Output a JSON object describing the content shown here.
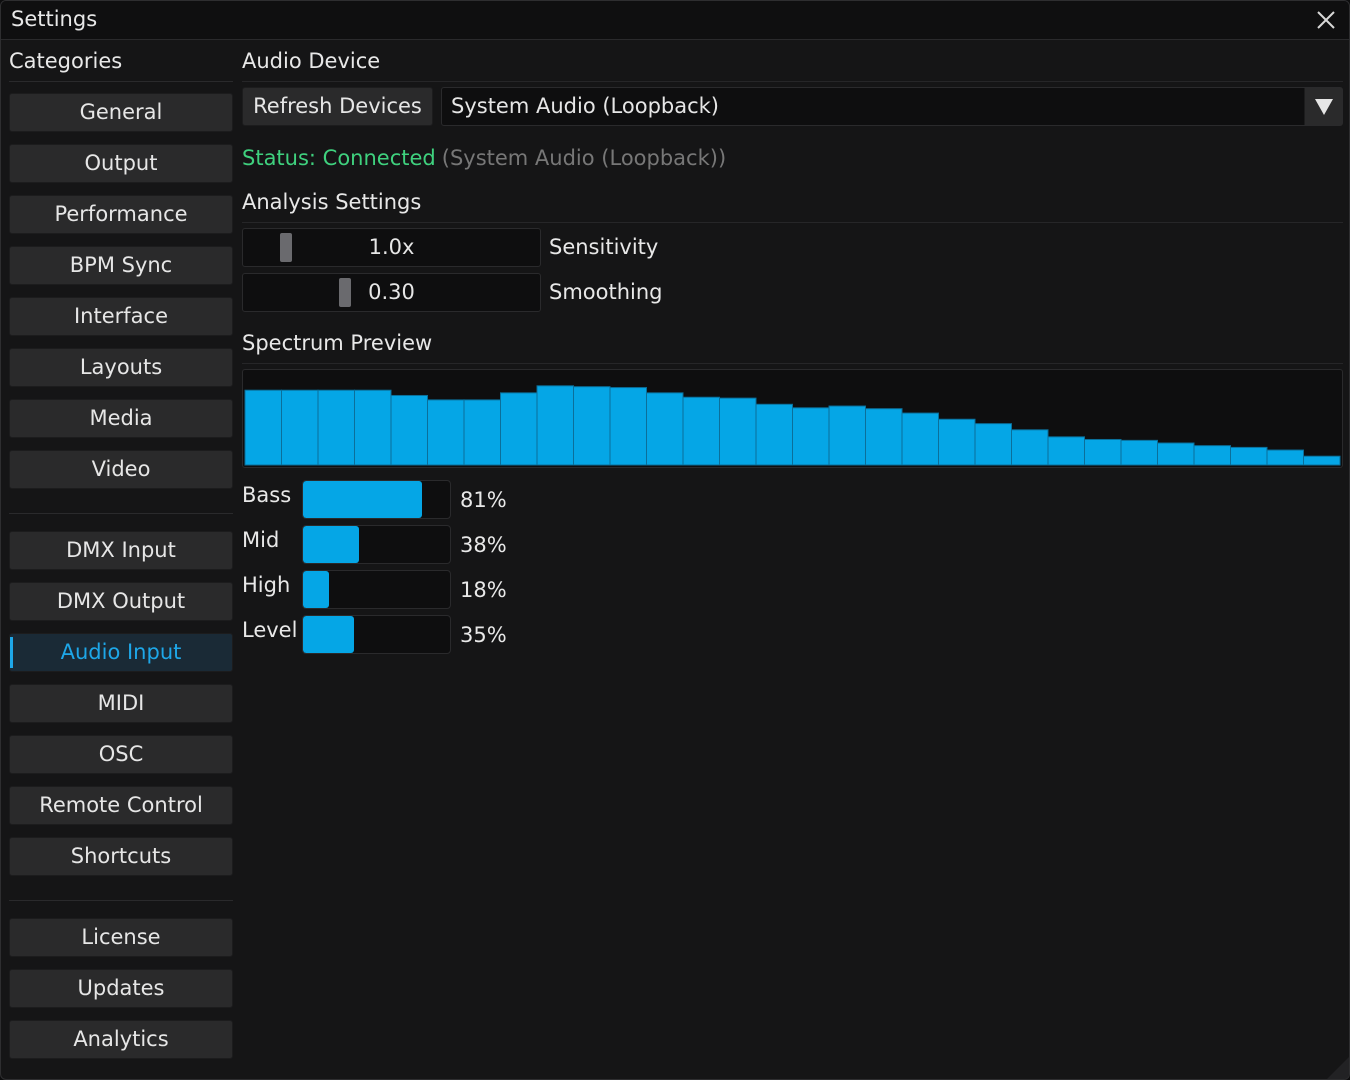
{
  "window": {
    "title": "Settings"
  },
  "sidebar": {
    "title": "Categories",
    "groups": [
      [
        "General",
        "Output",
        "Performance",
        "BPM Sync",
        "Interface",
        "Layouts",
        "Media",
        "Video"
      ],
      [
        "DMX Input",
        "DMX Output",
        "Audio Input",
        "MIDI",
        "OSC",
        "Remote Control",
        "Shortcuts"
      ],
      [
        "License",
        "Updates",
        "Analytics"
      ]
    ],
    "active": "Audio Input"
  },
  "audio_device": {
    "section_title": "Audio Device",
    "refresh_label": "Refresh Devices",
    "selected_device": "System Audio (Loopback)",
    "status_label": "Status: Connected",
    "status_device": "(System Audio (Loopback))"
  },
  "analysis": {
    "section_title": "Analysis Settings",
    "sensitivity": {
      "value_text": "1.0x",
      "label": "Sensitivity",
      "fraction": 0.05
    },
    "smoothing": {
      "value_text": "0.30",
      "label": "Smoothing",
      "fraction": 0.3
    }
  },
  "spectrum": {
    "section_title": "Spectrum Preview",
    "bars": [
      0.85,
      0.85,
      0.85,
      0.85,
      0.79,
      0.74,
      0.74,
      0.82,
      0.9,
      0.89,
      0.88,
      0.82,
      0.77,
      0.76,
      0.69,
      0.65,
      0.67,
      0.64,
      0.59,
      0.52,
      0.47,
      0.4,
      0.32,
      0.29,
      0.28,
      0.25,
      0.22,
      0.2,
      0.17,
      0.1
    ]
  },
  "levels": [
    {
      "label": "Bass",
      "value": 0.81,
      "text": "81%"
    },
    {
      "label": "Mid",
      "value": 0.38,
      "text": "38%"
    },
    {
      "label": "High",
      "value": 0.18,
      "text": "18%"
    },
    {
      "label": "Level",
      "value": 0.35,
      "text": "35%"
    }
  ],
  "colors": {
    "accent": "#05a6e6",
    "status_ok": "#3fd17e"
  }
}
